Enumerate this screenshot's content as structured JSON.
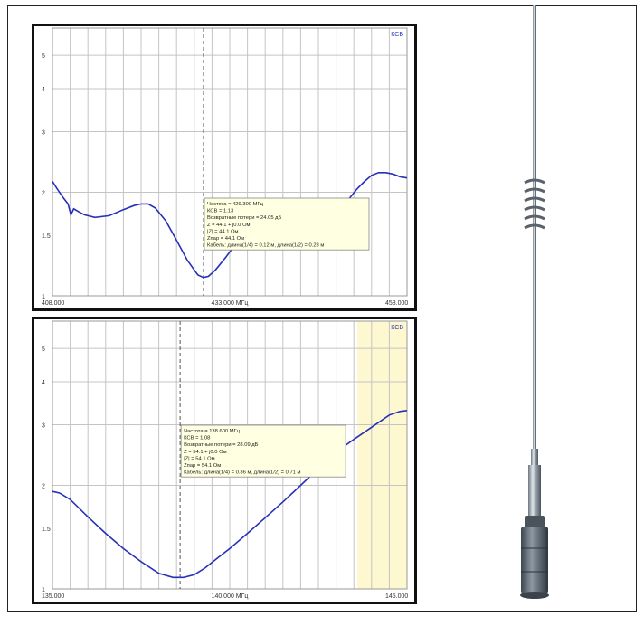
{
  "chart_data": [
    {
      "type": "line",
      "legend": "КСВ",
      "xlim": [
        408.0,
        458.0
      ],
      "ylim": [
        1,
        6
      ],
      "x_tick_labels": [
        "408.000",
        "433.000 МГц",
        "458.000"
      ],
      "y_tick_labels": [
        "1",
        "1.5",
        "2",
        "3",
        "4",
        "5"
      ],
      "x_divisions": 20,
      "y_divisions": 5,
      "log_y": true,
      "line_color": "#2630b8",
      "shaded_region": null,
      "marker_x": 429.3,
      "tooltip": [
        "Частота = 429.300 МГц",
        "КСВ = 1.13",
        "Возвратные потери = 24.05 дБ",
        "Z = 44.1 + j0.0 Ом",
        "|Z| = 44.1 Ом",
        "Zпар = 44.1 Ом",
        "Кабель: длина(1/4) = 0.12 м, длина(1/2) = 0.23 м"
      ],
      "series": [
        {
          "x": [
            408.0,
            408.7,
            409.5,
            410.2,
            410.6,
            411.0,
            411.6,
            412.5,
            414.0,
            416.0,
            418.0,
            419.5,
            420.5,
            421.5,
            422.5,
            424.0,
            425.5,
            427.0,
            428.5,
            429.3,
            430.0,
            431.0,
            432.5,
            434.0,
            435.5,
            437.0,
            438.5,
            440.0,
            441.5,
            443.0,
            444.0,
            445.0,
            446.5,
            448.0,
            449.5,
            451.0,
            452.0,
            453.0,
            454.0,
            455.0,
            456.0,
            457.0,
            458.0
          ],
          "y": [
            2.15,
            2.04,
            1.93,
            1.85,
            1.72,
            1.79,
            1.76,
            1.72,
            1.69,
            1.71,
            1.78,
            1.83,
            1.85,
            1.85,
            1.8,
            1.65,
            1.45,
            1.27,
            1.15,
            1.13,
            1.14,
            1.19,
            1.3,
            1.43,
            1.53,
            1.58,
            1.57,
            1.55,
            1.55,
            1.51,
            1.49,
            1.5,
            1.58,
            1.72,
            1.88,
            2.05,
            2.15,
            2.24,
            2.28,
            2.28,
            2.26,
            2.22,
            2.2
          ]
        }
      ]
    },
    {
      "type": "line",
      "legend": "КСВ",
      "xlim": [
        135.0,
        145.0
      ],
      "ylim": [
        1,
        6
      ],
      "x_tick_labels": [
        "135.000",
        "140.000 МГц",
        "145.000"
      ],
      "y_tick_labels": [
        "1",
        "1.5",
        "2",
        "3",
        "4",
        "5"
      ],
      "x_divisions": 20,
      "y_divisions": 5,
      "log_y": true,
      "line_color": "#2630b8",
      "shaded_region": [
        143.6,
        145.0
      ],
      "marker_x": 138.6,
      "tooltip": [
        "Частота = 138.600 МГц",
        "КСВ = 1.08",
        "Возвратные потери = 28.09 дБ",
        "Z = 54.1 + j0.0 Ом",
        "|Z| = 54.1 Ом",
        "Zпар = 54.1 Ом",
        "Кабель: длина(1/4) = 0.36 м, длина(1/2) = 0.71 м"
      ],
      "series": [
        {
          "x": [
            135.0,
            135.2,
            135.5,
            136.0,
            136.5,
            137.0,
            137.5,
            138.0,
            138.4,
            138.7,
            139.0,
            139.3,
            139.7,
            140.0,
            140.5,
            141.0,
            141.5,
            142.0,
            142.5,
            143.0,
            143.5,
            144.0,
            144.5,
            144.8,
            145.0
          ],
          "y": [
            1.92,
            1.9,
            1.82,
            1.62,
            1.45,
            1.31,
            1.2,
            1.11,
            1.08,
            1.08,
            1.1,
            1.15,
            1.24,
            1.31,
            1.45,
            1.61,
            1.79,
            2.0,
            2.24,
            2.5,
            2.72,
            2.95,
            3.2,
            3.28,
            3.3
          ]
        }
      ]
    }
  ]
}
